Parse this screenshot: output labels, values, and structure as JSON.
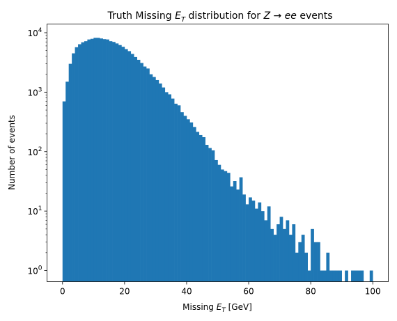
{
  "chart_data": {
    "type": "histogram",
    "title_parts": {
      "pre": "Truth Missing ",
      "var": "E",
      "sub": "T",
      "mid": " distribution for ",
      "proc": "Z → ee",
      "post": " events"
    },
    "xlabel_parts": {
      "pre": "Missing ",
      "var": "E",
      "sub": "T",
      "post": " [GeV]"
    },
    "ylabel": "Number of events",
    "xlim": [
      -5,
      105
    ],
    "ylim": [
      0.65,
      14000
    ],
    "yscale": "log",
    "xticks": [
      0,
      20,
      40,
      60,
      80,
      100
    ],
    "yticks": [
      {
        "value": 1,
        "base": "10",
        "exp": "0"
      },
      {
        "value": 10,
        "base": "10",
        "exp": "1"
      },
      {
        "value": 100,
        "base": "10",
        "exp": "2"
      },
      {
        "value": 1000,
        "base": "10",
        "exp": "3"
      },
      {
        "value": 10000,
        "base": "10",
        "exp": "4"
      }
    ],
    "bar_color": "#1f77b4",
    "bin_start": 0,
    "bin_width": 1,
    "values": [
      700,
      1500,
      3000,
      4500,
      5700,
      6400,
      6900,
      7200,
      7700,
      7900,
      8200,
      8200,
      8000,
      7800,
      7700,
      7200,
      7000,
      6600,
      6200,
      5800,
      5300,
      4900,
      4400,
      3900,
      3500,
      3100,
      2700,
      2500,
      2000,
      1800,
      1600,
      1400,
      1200,
      1000,
      920,
      780,
      640,
      600,
      460,
      400,
      350,
      310,
      260,
      215,
      190,
      175,
      130,
      115,
      105,
      72,
      60,
      50,
      47,
      44,
      26,
      32,
      23,
      37,
      19,
      13,
      17,
      15,
      11,
      14,
      10,
      7,
      12,
      5,
      4,
      6,
      8,
      5,
      7,
      4,
      6,
      2,
      3,
      4,
      2,
      1,
      5,
      3,
      3,
      1,
      1,
      2,
      1,
      1,
      1,
      1,
      0,
      1,
      0,
      1,
      1,
      1,
      1,
      0,
      0,
      1
    ]
  }
}
